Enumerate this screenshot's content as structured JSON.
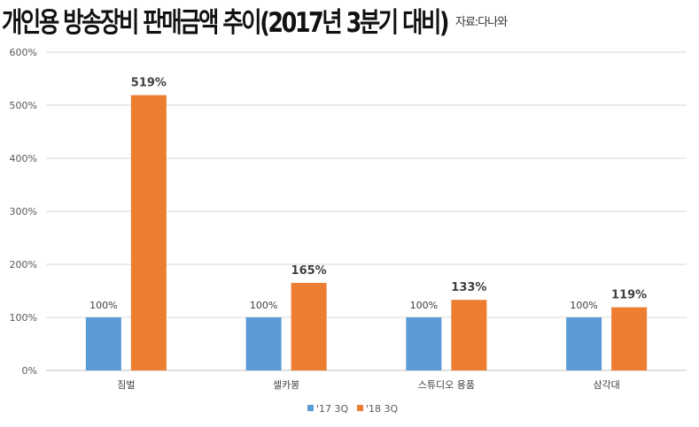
{
  "chart_data": {
    "type": "bar",
    "title": "개인용 방송장비 판매금액 추이(2017년 3분기 대비)",
    "source": "자료:다나와",
    "categories": [
      "짐벌",
      "셀카봉",
      "스튜디오 용품",
      "삼각대"
    ],
    "series": [
      {
        "name": "'17 3Q",
        "color": "#5b9bd5",
        "values": [
          100,
          100,
          100,
          100
        ],
        "labels": [
          "100%",
          "100%",
          "100%",
          "100%"
        ]
      },
      {
        "name": "'18 3Q",
        "color": "#ed7d31",
        "values": [
          519,
          165,
          133,
          119
        ],
        "labels": [
          "519%",
          "165%",
          "133%",
          "119%"
        ]
      }
    ],
    "yticks": [
      "0%",
      "100%",
      "200%",
      "300%",
      "400%",
      "500%",
      "600%"
    ],
    "ylim": [
      0,
      600
    ],
    "grid": true,
    "legend": "bottom"
  }
}
